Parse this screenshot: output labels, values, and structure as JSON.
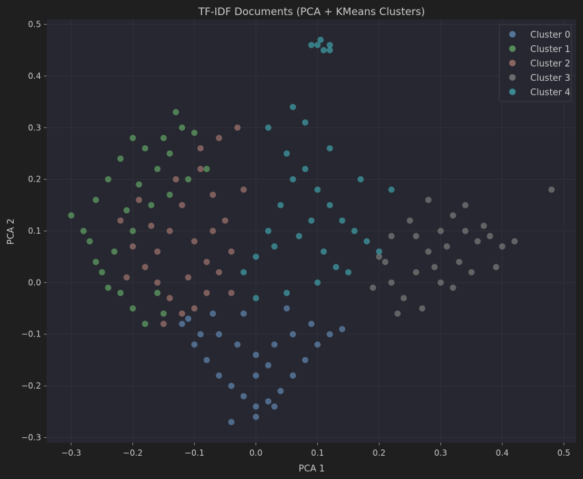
{
  "chart_data": {
    "type": "scatter",
    "title": "TF-IDF Documents (PCA + KMeans Clusters)",
    "xlabel": "PCA 1",
    "ylabel": "PCA 2",
    "xlim": [
      -0.34,
      0.52
    ],
    "ylim": [
      -0.31,
      0.51
    ],
    "x_ticks": [
      -0.3,
      -0.2,
      -0.1,
      0.0,
      0.1,
      0.2,
      0.3,
      0.4,
      0.5
    ],
    "x_tick_labels": [
      "−0.3",
      "−0.2",
      "−0.1",
      "0.0",
      "0.1",
      "0.2",
      "0.3",
      "0.4",
      "0.5"
    ],
    "y_ticks": [
      -0.3,
      -0.2,
      -0.1,
      0.0,
      0.1,
      0.2,
      0.3,
      0.4,
      0.5
    ],
    "y_tick_labels": [
      "−0.3",
      "−0.2",
      "−0.1",
      "0.0",
      "0.1",
      "0.2",
      "0.3",
      "0.4",
      "0.5"
    ],
    "grid": true,
    "legend_position": "top-right",
    "background": "#262730",
    "series": [
      {
        "name": "Cluster 0",
        "color": "#5d82a8",
        "points": [
          [
            -0.12,
            -0.08
          ],
          [
            -0.1,
            -0.12
          ],
          [
            -0.08,
            -0.15
          ],
          [
            -0.06,
            -0.18
          ],
          [
            -0.04,
            -0.2
          ],
          [
            -0.02,
            -0.22
          ],
          [
            0.0,
            -0.24
          ],
          [
            0.02,
            -0.23
          ],
          [
            0.04,
            -0.21
          ],
          [
            0.06,
            -0.18
          ],
          [
            0.08,
            -0.15
          ],
          [
            0.1,
            -0.12
          ],
          [
            0.12,
            -0.1
          ],
          [
            0.14,
            -0.09
          ],
          [
            0.06,
            -0.1
          ],
          [
            0.03,
            -0.12
          ],
          [
            0.0,
            -0.14
          ],
          [
            -0.03,
            -0.12
          ],
          [
            -0.06,
            -0.1
          ],
          [
            -0.09,
            -0.1
          ],
          [
            0.05,
            -0.05
          ],
          [
            -0.02,
            -0.06
          ],
          [
            0.0,
            -0.18
          ],
          [
            -0.04,
            -0.27
          ],
          [
            0.0,
            -0.26
          ],
          [
            0.03,
            -0.24
          ],
          [
            -0.11,
            -0.07
          ],
          [
            0.09,
            -0.08
          ],
          [
            -0.07,
            -0.06
          ],
          [
            0.02,
            -0.16
          ]
        ]
      },
      {
        "name": "Cluster 1",
        "color": "#5f9e61",
        "points": [
          [
            -0.3,
            0.13
          ],
          [
            -0.28,
            0.1
          ],
          [
            -0.26,
            0.16
          ],
          [
            -0.24,
            0.2
          ],
          [
            -0.22,
            0.24
          ],
          [
            -0.2,
            0.28
          ],
          [
            -0.18,
            0.26
          ],
          [
            -0.16,
            0.22
          ],
          [
            -0.14,
            0.25
          ],
          [
            -0.12,
            0.3
          ],
          [
            -0.13,
            0.33
          ],
          [
            -0.1,
            0.29
          ],
          [
            -0.08,
            0.22
          ],
          [
            -0.23,
            0.06
          ],
          [
            -0.25,
            0.02
          ],
          [
            -0.22,
            -0.02
          ],
          [
            -0.2,
            -0.05
          ],
          [
            -0.18,
            -0.08
          ],
          [
            -0.15,
            -0.06
          ],
          [
            -0.2,
            0.1
          ],
          [
            -0.17,
            0.15
          ],
          [
            -0.19,
            0.19
          ],
          [
            -0.27,
            0.08
          ],
          [
            -0.24,
            -0.01
          ],
          [
            -0.16,
            -0.02
          ],
          [
            -0.14,
            0.17
          ],
          [
            -0.11,
            0.2
          ],
          [
            -0.21,
            0.14
          ],
          [
            -0.26,
            0.04
          ],
          [
            -0.15,
            0.28
          ]
        ]
      },
      {
        "name": "Cluster 2",
        "color": "#9c726c",
        "points": [
          [
            -0.22,
            0.12
          ],
          [
            -0.2,
            0.07
          ],
          [
            -0.18,
            0.03
          ],
          [
            -0.16,
            0.0
          ],
          [
            -0.14,
            -0.03
          ],
          [
            -0.12,
            -0.06
          ],
          [
            -0.1,
            -0.05
          ],
          [
            -0.08,
            -0.02
          ],
          [
            -0.06,
            0.02
          ],
          [
            -0.04,
            0.06
          ],
          [
            -0.05,
            0.12
          ],
          [
            -0.07,
            0.17
          ],
          [
            -0.09,
            0.22
          ],
          [
            -0.06,
            0.28
          ],
          [
            -0.03,
            0.3
          ],
          [
            -0.12,
            0.15
          ],
          [
            -0.14,
            0.1
          ],
          [
            -0.1,
            0.08
          ],
          [
            -0.16,
            0.06
          ],
          [
            -0.11,
            0.01
          ],
          [
            -0.08,
            0.04
          ],
          [
            -0.13,
            0.2
          ],
          [
            -0.19,
            0.16
          ],
          [
            -0.21,
            0.01
          ],
          [
            -0.04,
            -0.02
          ],
          [
            -0.07,
            0.1
          ],
          [
            -0.15,
            -0.08
          ],
          [
            -0.09,
            0.26
          ],
          [
            -0.02,
            0.18
          ],
          [
            -0.17,
            0.11
          ]
        ]
      },
      {
        "name": "Cluster 3",
        "color": "#787878",
        "points": [
          [
            0.2,
            0.05
          ],
          [
            0.22,
            0.0
          ],
          [
            0.24,
            -0.03
          ],
          [
            0.26,
            0.02
          ],
          [
            0.28,
            0.06
          ],
          [
            0.3,
            0.1
          ],
          [
            0.32,
            0.13
          ],
          [
            0.34,
            0.1
          ],
          [
            0.36,
            0.08
          ],
          [
            0.38,
            0.09
          ],
          [
            0.4,
            0.07
          ],
          [
            0.42,
            0.08
          ],
          [
            0.3,
            0.0
          ],
          [
            0.27,
            -0.05
          ],
          [
            0.25,
            0.12
          ],
          [
            0.28,
            0.16
          ],
          [
            0.33,
            0.04
          ],
          [
            0.35,
            0.02
          ],
          [
            0.22,
            0.09
          ],
          [
            0.19,
            -0.01
          ],
          [
            0.23,
            -0.06
          ],
          [
            0.29,
            0.03
          ],
          [
            0.31,
            0.07
          ],
          [
            0.37,
            0.11
          ],
          [
            0.39,
            0.03
          ],
          [
            0.48,
            0.18
          ],
          [
            0.26,
            0.09
          ],
          [
            0.34,
            0.15
          ],
          [
            0.21,
            0.04
          ],
          [
            0.32,
            -0.01
          ]
        ]
      },
      {
        "name": "Cluster 4",
        "color": "#3f9aa2",
        "points": [
          [
            0.0,
            0.05
          ],
          [
            0.02,
            0.1
          ],
          [
            0.04,
            0.15
          ],
          [
            0.06,
            0.2
          ],
          [
            0.08,
            0.22
          ],
          [
            0.1,
            0.18
          ],
          [
            0.12,
            0.15
          ],
          [
            0.14,
            0.12
          ],
          [
            0.16,
            0.1
          ],
          [
            0.18,
            0.08
          ],
          [
            0.2,
            0.06
          ],
          [
            0.15,
            0.02
          ],
          [
            0.1,
            0.0
          ],
          [
            0.05,
            -0.02
          ],
          [
            0.0,
            -0.03
          ],
          [
            -0.02,
            0.02
          ],
          [
            0.03,
            0.07
          ],
          [
            0.07,
            0.09
          ],
          [
            0.11,
            0.06
          ],
          [
            0.13,
            0.03
          ],
          [
            0.09,
            0.12
          ],
          [
            0.05,
            0.25
          ],
          [
            0.02,
            0.3
          ],
          [
            0.06,
            0.34
          ],
          [
            0.08,
            0.31
          ],
          [
            0.12,
            0.26
          ],
          [
            0.17,
            0.2
          ],
          [
            0.22,
            0.18
          ],
          [
            0.1,
            0.46
          ],
          [
            0.11,
            0.45
          ],
          [
            0.12,
            0.46
          ],
          [
            0.09,
            0.46
          ],
          [
            0.105,
            0.47
          ],
          [
            0.12,
            0.45
          ]
        ]
      }
    ]
  }
}
